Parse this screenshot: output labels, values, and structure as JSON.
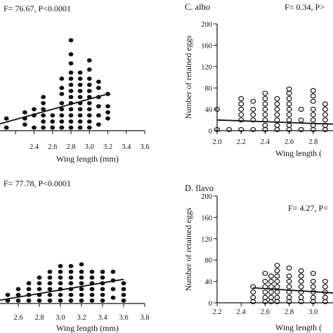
{
  "chart_data": [
    {
      "id": "A",
      "type": "scatter",
      "panel_label": "",
      "stat": "F= 76.67, P<0.0001",
      "xlabel": "Wing length (mm)",
      "ylabel": "",
      "xlim": [
        2.0,
        3.6
      ],
      "ylim": [
        0,
        200
      ],
      "xticks": [
        2.0,
        2.2,
        2.4,
        2.6,
        2.8,
        3.0,
        3.2,
        3.4,
        3.6
      ],
      "xtick_labels": [
        "",
        "",
        "2.4",
        "2.6",
        "2.8",
        "3.0",
        "3.2",
        "3.4",
        "3.6"
      ],
      "marker": "filled",
      "fit": {
        "x": [
          2.0,
          3.2
        ],
        "y": [
          10,
          60
        ]
      },
      "points": [
        [
          2.0,
          25
        ],
        [
          2.0,
          5
        ],
        [
          2.1,
          20
        ],
        [
          2.1,
          5
        ],
        [
          2.3,
          10
        ],
        [
          2.3,
          20
        ],
        [
          2.3,
          30
        ],
        [
          2.4,
          5
        ],
        [
          2.4,
          25
        ],
        [
          2.4,
          35
        ],
        [
          2.5,
          5
        ],
        [
          2.5,
          15
        ],
        [
          2.5,
          25
        ],
        [
          2.5,
          35
        ],
        [
          2.5,
          45
        ],
        [
          2.5,
          55
        ],
        [
          2.6,
          5
        ],
        [
          2.6,
          15
        ],
        [
          2.6,
          25
        ],
        [
          2.7,
          5
        ],
        [
          2.7,
          15
        ],
        [
          2.7,
          25
        ],
        [
          2.7,
          35
        ],
        [
          2.7,
          45
        ],
        [
          2.7,
          60
        ],
        [
          2.7,
          70
        ],
        [
          2.7,
          85
        ],
        [
          2.8,
          5
        ],
        [
          2.8,
          15
        ],
        [
          2.8,
          25
        ],
        [
          2.8,
          35
        ],
        [
          2.8,
          45
        ],
        [
          2.8,
          55
        ],
        [
          2.8,
          65
        ],
        [
          2.8,
          75
        ],
        [
          2.8,
          85
        ],
        [
          2.8,
          95
        ],
        [
          2.8,
          110
        ],
        [
          2.8,
          125
        ],
        [
          2.8,
          148
        ],
        [
          2.9,
          5
        ],
        [
          2.9,
          15
        ],
        [
          2.9,
          25
        ],
        [
          2.9,
          35
        ],
        [
          2.9,
          45
        ],
        [
          2.9,
          55
        ],
        [
          2.9,
          65
        ],
        [
          2.9,
          75
        ],
        [
          2.9,
          85
        ],
        [
          2.9,
          95
        ],
        [
          3.0,
          5
        ],
        [
          3.0,
          15
        ],
        [
          3.0,
          25
        ],
        [
          3.0,
          35
        ],
        [
          3.0,
          45
        ],
        [
          3.0,
          55
        ],
        [
          3.0,
          65
        ],
        [
          3.0,
          75
        ],
        [
          3.0,
          85
        ],
        [
          3.0,
          100
        ],
        [
          3.0,
          115
        ],
        [
          3.1,
          10
        ],
        [
          3.1,
          25
        ],
        [
          3.1,
          40
        ],
        [
          3.1,
          55
        ],
        [
          3.1,
          70
        ],
        [
          3.1,
          80
        ],
        [
          3.2,
          20
        ],
        [
          3.2,
          30
        ],
        [
          3.2,
          40
        ],
        [
          3.2,
          60
        ]
      ]
    },
    {
      "id": "B",
      "type": "scatter",
      "panel_label": "",
      "stat": "F= 77.78, P<0.0001",
      "xlabel": "Wing length (mm)",
      "ylabel": "",
      "xlim": [
        2.4,
        3.8
      ],
      "ylim": [
        0,
        200
      ],
      "xticks": [
        2.4,
        2.6,
        2.8,
        3.0,
        3.2,
        3.4,
        3.6,
        3.8
      ],
      "xtick_labels": [
        "",
        "2.6",
        "2.8",
        "3.0",
        "3.2",
        "3.4",
        "3.6",
        "3.8"
      ],
      "marker": "filled",
      "fit": {
        "x": [
          2.4,
          3.6
        ],
        "y": [
          5,
          42
        ]
      },
      "points": [
        [
          2.5,
          5
        ],
        [
          2.5,
          15
        ],
        [
          2.6,
          5
        ],
        [
          2.6,
          15
        ],
        [
          2.6,
          25
        ],
        [
          2.7,
          5
        ],
        [
          2.7,
          15
        ],
        [
          2.7,
          25
        ],
        [
          2.7,
          35
        ],
        [
          2.8,
          5
        ],
        [
          2.8,
          15
        ],
        [
          2.8,
          25
        ],
        [
          2.8,
          35
        ],
        [
          2.8,
          45
        ],
        [
          2.9,
          5
        ],
        [
          2.9,
          15
        ],
        [
          2.9,
          25
        ],
        [
          2.9,
          35
        ],
        [
          2.9,
          45
        ],
        [
          2.9,
          55
        ],
        [
          3.0,
          5
        ],
        [
          3.0,
          15
        ],
        [
          3.0,
          25
        ],
        [
          3.0,
          35
        ],
        [
          3.0,
          45
        ],
        [
          3.0,
          55
        ],
        [
          3.0,
          65
        ],
        [
          3.1,
          5
        ],
        [
          3.1,
          15
        ],
        [
          3.1,
          25
        ],
        [
          3.1,
          35
        ],
        [
          3.1,
          45
        ],
        [
          3.1,
          55
        ],
        [
          3.1,
          65
        ],
        [
          3.2,
          5
        ],
        [
          3.2,
          15
        ],
        [
          3.2,
          25
        ],
        [
          3.2,
          35
        ],
        [
          3.2,
          45
        ],
        [
          3.2,
          55
        ],
        [
          3.2,
          68
        ],
        [
          3.3,
          5
        ],
        [
          3.3,
          15
        ],
        [
          3.3,
          25
        ],
        [
          3.3,
          35
        ],
        [
          3.3,
          45
        ],
        [
          3.3,
          55
        ],
        [
          3.4,
          5
        ],
        [
          3.4,
          15
        ],
        [
          3.4,
          25
        ],
        [
          3.4,
          35
        ],
        [
          3.4,
          45
        ],
        [
          3.4,
          55
        ],
        [
          3.5,
          10
        ],
        [
          3.5,
          25
        ],
        [
          3.5,
          40
        ],
        [
          3.5,
          55
        ],
        [
          3.6,
          5
        ],
        [
          3.6,
          15
        ],
        [
          3.6,
          25
        ],
        [
          3.6,
          35
        ]
      ]
    },
    {
      "id": "C",
      "type": "scatter",
      "panel_label": "C.  albo",
      "stat": "F= 0.34, P>",
      "xlabel": "Wing length (",
      "ylabel": "Number of retained eggs",
      "xlim": [
        2.0,
        3.0
      ],
      "ylim": [
        0,
        200
      ],
      "xticks": [
        2.0,
        2.2,
        2.4,
        2.6,
        2.8
      ],
      "xtick_labels": [
        "2.0",
        "2.2",
        "2.4",
        "2.6",
        "2.8"
      ],
      "yticks": [
        0,
        40,
        80,
        120,
        160,
        200
      ],
      "ytick_labels": [
        "0",
        "40",
        "80",
        "120",
        "160",
        "200"
      ],
      "marker": "open",
      "fit": {
        "x": [
          2.0,
          3.0
        ],
        "y": [
          20,
          12
        ]
      },
      "points": [
        [
          2.0,
          40
        ],
        [
          2.0,
          2
        ],
        [
          2.1,
          2
        ],
        [
          2.2,
          2
        ],
        [
          2.2,
          20
        ],
        [
          2.2,
          30
        ],
        [
          2.2,
          40
        ],
        [
          2.2,
          50
        ],
        [
          2.2,
          60
        ],
        [
          2.3,
          2
        ],
        [
          2.3,
          20
        ],
        [
          2.3,
          30
        ],
        [
          2.3,
          40
        ],
        [
          2.3,
          55
        ],
        [
          2.4,
          2
        ],
        [
          2.4,
          10
        ],
        [
          2.4,
          20
        ],
        [
          2.4,
          30
        ],
        [
          2.4,
          40
        ],
        [
          2.4,
          50
        ],
        [
          2.4,
          60
        ],
        [
          2.4,
          70
        ],
        [
          2.5,
          2
        ],
        [
          2.5,
          10
        ],
        [
          2.5,
          20
        ],
        [
          2.5,
          30
        ],
        [
          2.5,
          40
        ],
        [
          2.5,
          50
        ],
        [
          2.5,
          60
        ],
        [
          2.6,
          2
        ],
        [
          2.6,
          10
        ],
        [
          2.6,
          20
        ],
        [
          2.6,
          30
        ],
        [
          2.6,
          40
        ],
        [
          2.6,
          50
        ],
        [
          2.6,
          60
        ],
        [
          2.6,
          70
        ],
        [
          2.6,
          78
        ],
        [
          2.7,
          2
        ],
        [
          2.7,
          20
        ],
        [
          2.7,
          40
        ],
        [
          2.8,
          2
        ],
        [
          2.8,
          10
        ],
        [
          2.8,
          20
        ],
        [
          2.8,
          30
        ],
        [
          2.8,
          40
        ],
        [
          2.8,
          55
        ],
        [
          2.8,
          65
        ],
        [
          2.8,
          75
        ],
        [
          2.9,
          2
        ],
        [
          2.9,
          10
        ],
        [
          2.9,
          20
        ],
        [
          2.9,
          30
        ],
        [
          2.9,
          40
        ],
        [
          2.9,
          50
        ]
      ]
    },
    {
      "id": "D",
      "type": "scatter",
      "panel_label": "D. flavo",
      "stat": "F= 4.27, P=",
      "xlabel": "Wing length (",
      "ylabel": "Number of retained eggs",
      "xlim": [
        2.2,
        3.2
      ],
      "ylim": [
        0,
        200
      ],
      "xticks": [
        2.2,
        2.4,
        2.6,
        2.8,
        3.0
      ],
      "xtick_labels": [
        "2.2",
        "2.4",
        "2.6",
        "2.8",
        "3.0"
      ],
      "yticks": [
        0,
        40,
        80,
        120,
        160,
        200
      ],
      "ytick_labels": [
        "0",
        "40",
        "80",
        "120",
        "160",
        "200"
      ],
      "marker": "open",
      "fit": {
        "x": [
          2.5,
          3.2
        ],
        "y": [
          28,
          18
        ]
      },
      "points": [
        [
          2.5,
          2
        ],
        [
          2.5,
          10
        ],
        [
          2.5,
          20
        ],
        [
          2.5,
          30
        ],
        [
          2.6,
          2
        ],
        [
          2.6,
          10
        ],
        [
          2.6,
          20
        ],
        [
          2.6,
          30
        ],
        [
          2.6,
          40
        ],
        [
          2.6,
          55
        ],
        [
          2.65,
          2
        ],
        [
          2.65,
          10
        ],
        [
          2.65,
          20
        ],
        [
          2.65,
          30
        ],
        [
          2.65,
          40
        ],
        [
          2.65,
          50
        ],
        [
          2.7,
          2
        ],
        [
          2.7,
          10
        ],
        [
          2.7,
          20
        ],
        [
          2.7,
          30
        ],
        [
          2.7,
          40
        ],
        [
          2.7,
          50
        ],
        [
          2.7,
          60
        ],
        [
          2.7,
          70
        ],
        [
          2.8,
          2
        ],
        [
          2.8,
          10
        ],
        [
          2.8,
          20
        ],
        [
          2.8,
          30
        ],
        [
          2.8,
          40
        ],
        [
          2.8,
          50
        ],
        [
          2.8,
          65
        ],
        [
          2.9,
          2
        ],
        [
          2.9,
          10
        ],
        [
          2.9,
          20
        ],
        [
          2.9,
          30
        ],
        [
          2.9,
          40
        ],
        [
          2.9,
          50
        ],
        [
          2.9,
          60
        ],
        [
          3.0,
          2
        ],
        [
          3.0,
          10
        ],
        [
          3.0,
          20
        ],
        [
          3.0,
          30
        ],
        [
          3.0,
          40
        ],
        [
          3.0,
          55
        ],
        [
          3.1,
          2
        ],
        [
          3.1,
          10
        ],
        [
          3.1,
          20
        ],
        [
          3.1,
          30
        ],
        [
          3.1,
          40
        ]
      ]
    }
  ]
}
